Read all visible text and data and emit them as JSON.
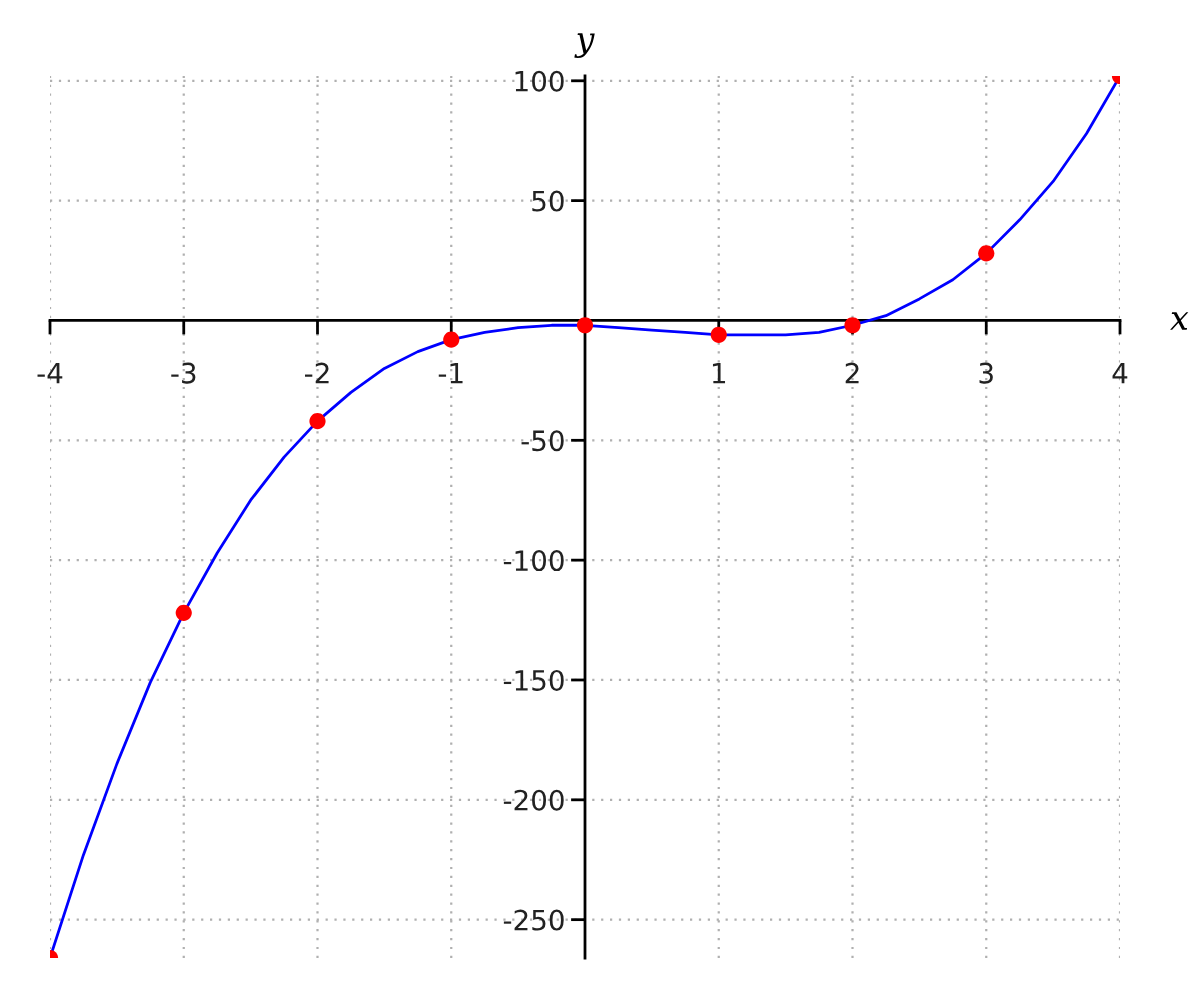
{
  "chart_data": {
    "type": "line",
    "xlabel": "x",
    "ylabel": "y",
    "series": [
      {
        "color": "#0000ff",
        "line_style": "solid",
        "x": [
          -4,
          -3.75,
          -3.5,
          -3.25,
          -3,
          -2.75,
          -2.5,
          -2.25,
          -2,
          -1.75,
          -1.5,
          -1.25,
          -1,
          -0.75,
          -0.5,
          -0.25,
          0,
          0.25,
          0.5,
          0.75,
          1,
          1.25,
          1.5,
          1.75,
          2,
          2.25,
          2.5,
          2.75,
          3,
          3.25,
          3.5,
          3.75,
          4
        ],
        "values": [
          -266,
          -223,
          -185,
          -151,
          -122,
          -97,
          -75,
          -57,
          -42,
          -30,
          -20,
          -13,
          -8,
          -5,
          -3,
          -2,
          -2,
          -3,
          -4,
          -5,
          -6,
          -6,
          -6,
          -5,
          -2,
          2,
          9,
          17,
          28,
          42,
          58,
          78,
          102
        ]
      },
      {
        "type": "scatter",
        "color": "#ff0000",
        "marker": "circle",
        "x": [
          -4,
          -3,
          -2,
          -1,
          0,
          1,
          2,
          3,
          4
        ],
        "values": [
          -266,
          -122,
          -42,
          -8,
          -2,
          -6,
          -2,
          28,
          102
        ]
      }
    ],
    "xlim": [
      -4,
      4
    ],
    "ylim": [
      -266,
      102
    ],
    "xticks": [
      -4,
      -3,
      -2,
      -1,
      1,
      2,
      3,
      4
    ],
    "yticks": [
      -250,
      -200,
      -150,
      -100,
      -50,
      50,
      100
    ],
    "grid": true
  }
}
